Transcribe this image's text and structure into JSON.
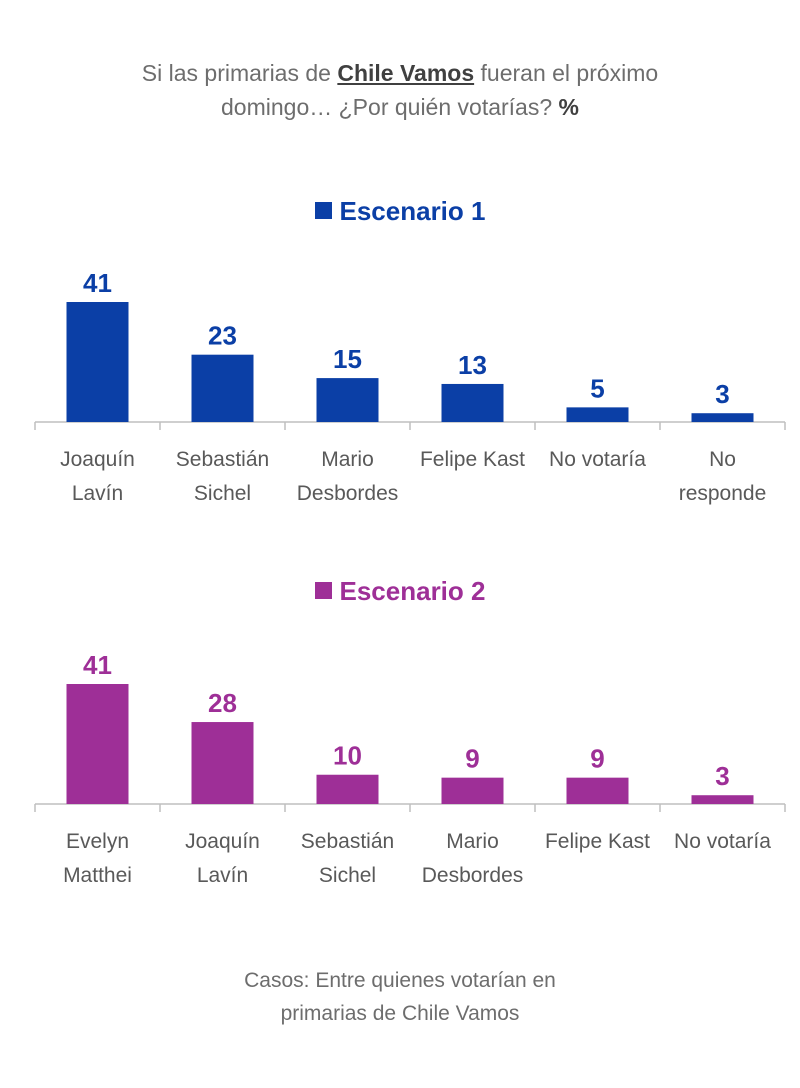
{
  "title": {
    "part1": "Si las primarias de",
    "highlight": "Chile Vamos",
    "part2": "fueran el próximo",
    "line2": "domingo… ¿Por quién votarías?",
    "unit": "%"
  },
  "footer": {
    "line1": "Casos: Entre quienes votarían en",
    "line2": "primarias de Chile Vamos"
  },
  "chart_data": [
    {
      "type": "bar",
      "title": "Escenario 1",
      "color": "#0b3fa6",
      "categories": [
        [
          "Joaquín",
          "Lavín"
        ],
        [
          "Sebastián",
          "Sichel"
        ],
        [
          "Mario",
          "Desbordes"
        ],
        [
          "Felipe Kast"
        ],
        [
          "No votaría"
        ],
        [
          "No",
          "responde"
        ]
      ],
      "values": [
        41,
        23,
        15,
        13,
        5,
        3
      ],
      "ylim": [
        0,
        41
      ],
      "grid": false
    },
    {
      "type": "bar",
      "title": "Escenario 2",
      "color": "#9e2f97",
      "categories": [
        [
          "Evelyn",
          "Matthei"
        ],
        [
          "Joaquín",
          "Lavín"
        ],
        [
          "Sebastián",
          "Sichel"
        ],
        [
          "Mario",
          "Desbordes"
        ],
        [
          "Felipe Kast"
        ],
        [
          "No votaría"
        ]
      ],
      "values": [
        41,
        28,
        10,
        9,
        9,
        3
      ],
      "ylim": [
        0,
        41
      ],
      "grid": false
    }
  ]
}
